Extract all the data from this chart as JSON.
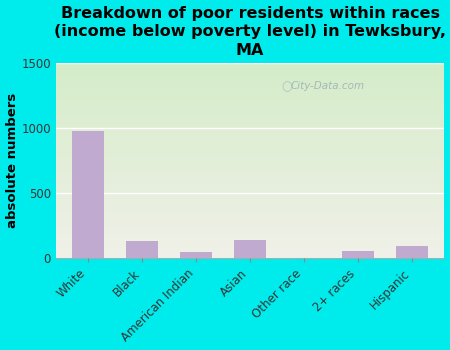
{
  "title": "Breakdown of poor residents within races\n(income below poverty level) in Tewksbury,\nMA",
  "categories": [
    "White",
    "Black",
    "American Indian",
    "Asian",
    "Other race",
    "2+ races",
    "Hispanic"
  ],
  "values": [
    975,
    130,
    45,
    135,
    0,
    55,
    90
  ],
  "bar_color": "#c0aacf",
  "ylabel": "absolute numbers",
  "ylim": [
    0,
    1500
  ],
  "yticks": [
    0,
    500,
    1000,
    1500
  ],
  "bg_outer": "#00ecec",
  "bg_plot_top": "#d4ecc8",
  "bg_plot_bottom": "#f0f0e8",
  "watermark": "City-Data.com",
  "title_fontsize": 11.5,
  "ylabel_fontsize": 9.5
}
